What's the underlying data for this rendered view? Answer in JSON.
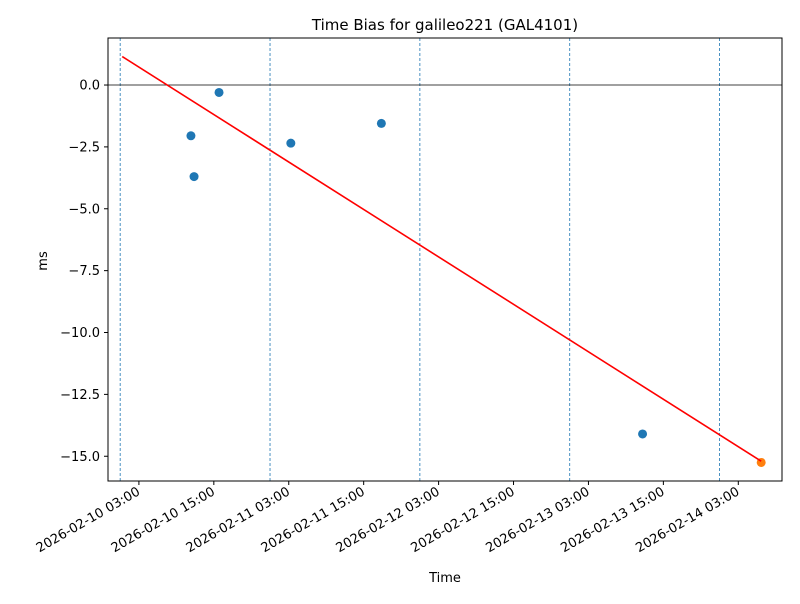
{
  "chart_data": {
    "type": "scatter",
    "title": "Time Bias for galileo221 (GAL4101)",
    "xlabel": "Time",
    "ylabel": "ms",
    "xlim": [
      "2026-02-09 22:03",
      "2026-02-14 10:00"
    ],
    "ylim": [
      -16.0,
      1.9
    ],
    "xticks": [
      {
        "value": "2026-02-10 03:00",
        "label": "2026-02-10 03:00"
      },
      {
        "value": "2026-02-10 15:00",
        "label": "2026-02-10 15:00"
      },
      {
        "value": "2026-02-11 03:00",
        "label": "2026-02-11 03:00"
      },
      {
        "value": "2026-02-11 15:00",
        "label": "2026-02-11 15:00"
      },
      {
        "value": "2026-02-12 03:00",
        "label": "2026-02-12 03:00"
      },
      {
        "value": "2026-02-12 15:00",
        "label": "2026-02-12 15:00"
      },
      {
        "value": "2026-02-13 03:00",
        "label": "2026-02-13 03:00"
      },
      {
        "value": "2026-02-13 15:00",
        "label": "2026-02-13 15:00"
      },
      {
        "value": "2026-02-14 03:00",
        "label": "2026-02-14 03:00"
      }
    ],
    "yticks": [
      {
        "value": 0.0,
        "label": "0.0"
      },
      {
        "value": -2.5,
        "label": "−2.5"
      },
      {
        "value": -5.0,
        "label": "−5.0"
      },
      {
        "value": -7.5,
        "label": "−7.5"
      },
      {
        "value": -10.0,
        "label": "−10.0"
      },
      {
        "value": -12.5,
        "label": "−12.5"
      },
      {
        "value": -15.0,
        "label": "−15.0"
      }
    ],
    "zero_line": 0,
    "day_boundaries": [
      "2026-02-10 00:00",
      "2026-02-11 00:00",
      "2026-02-12 00:00",
      "2026-02-13 00:00",
      "2026-02-14 00:00"
    ],
    "series": [
      {
        "kind": "scatter",
        "color": "#1f77b4",
        "points": [
          {
            "x": "2026-02-10 11:20",
            "y": -2.05
          },
          {
            "x": "2026-02-10 11:50",
            "y": -3.7
          },
          {
            "x": "2026-02-10 15:50",
            "y": -0.3
          },
          {
            "x": "2026-02-11 03:20",
            "y": -2.35
          },
          {
            "x": "2026-02-11 17:50",
            "y": -1.55
          },
          {
            "x": "2026-02-13 11:40",
            "y": -14.1
          }
        ]
      },
      {
        "kind": "scatter",
        "color": "#ff7f0e",
        "points": [
          {
            "x": "2026-02-14 06:40",
            "y": -15.25
          }
        ]
      },
      {
        "kind": "line",
        "color": "#ff0000",
        "points": [
          {
            "x": "2026-02-10 00:20",
            "y": 1.15
          },
          {
            "x": "2026-02-14 06:40",
            "y": -15.2
          }
        ]
      }
    ],
    "grid": false,
    "legend": "none"
  }
}
